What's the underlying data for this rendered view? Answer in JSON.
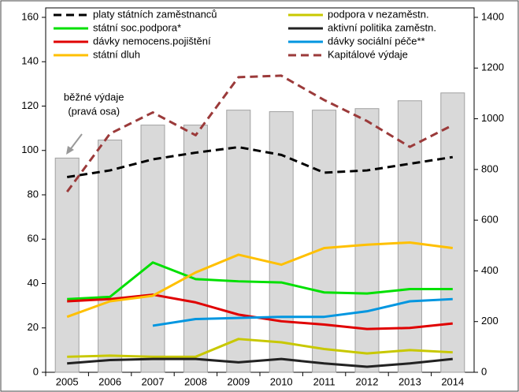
{
  "chart_data": {
    "type": "line",
    "categories": [
      "2005",
      "2006",
      "2007",
      "2008",
      "2009",
      "2010",
      "2011",
      "2012",
      "2013",
      "2014"
    ],
    "ylim": [
      0,
      160
    ],
    "yticks": [
      0,
      20,
      40,
      60,
      80,
      100,
      120,
      140,
      160
    ],
    "y2lim": [
      0,
      1400
    ],
    "y2ticks": [
      0,
      200,
      400,
      600,
      800,
      1000,
      1200,
      1400
    ],
    "annotation": [
      "běžné výdaje",
      "(pravá osa)"
    ],
    "bars": {
      "axis": "y2",
      "color": "#d9d9d9",
      "values": [
        845,
        916,
        975,
        975,
        1034,
        1028,
        1034,
        1040,
        1071,
        1102
      ]
    },
    "series": [
      {
        "name": "platy státních zaměstnanců",
        "color": "#000000",
        "dashed": true,
        "values": [
          88,
          91,
          96,
          99,
          101.5,
          98,
          90,
          91,
          94,
          97
        ]
      },
      {
        "name": "podpora v nezaměstn.",
        "color": "#c8c800",
        "values": [
          7,
          7.5,
          7,
          7,
          15,
          13.5,
          10.5,
          8.5,
          10,
          9
        ]
      },
      {
        "name": "státní soc.podpora*",
        "color": "#00e000",
        "values": [
          33,
          34,
          49.5,
          42,
          41,
          40.5,
          36,
          35.5,
          37.5,
          37.5
        ]
      },
      {
        "name": "aktivní politika zaměstn.",
        "color": "#222222",
        "values": [
          4,
          5.5,
          6,
          6,
          4.5,
          6,
          4,
          2.5,
          4,
          6
        ]
      },
      {
        "name": "dávky nemocens.pojištění",
        "color": "#e00000",
        "values": [
          32,
          33,
          35,
          31.5,
          26,
          23,
          21.5,
          19.5,
          20,
          22
        ]
      },
      {
        "name": "dávky sociální péče**",
        "color": "#0096e0",
        "values": [
          null,
          null,
          21,
          24,
          24.5,
          25,
          25,
          27.5,
          32,
          33
        ]
      },
      {
        "name": "státní dluh",
        "color": "#ffc000",
        "values": [
          25,
          32,
          34.5,
          45,
          53,
          48.5,
          56,
          57.5,
          58.5,
          56
        ]
      },
      {
        "name": "Kapitálové výdaje",
        "color": "#9b3a3a",
        "dashed": true,
        "axis": "y2",
        "values": [
          712,
          941,
          1025,
          935,
          1164,
          1170,
          1074,
          991,
          889,
          975
        ]
      }
    ]
  }
}
